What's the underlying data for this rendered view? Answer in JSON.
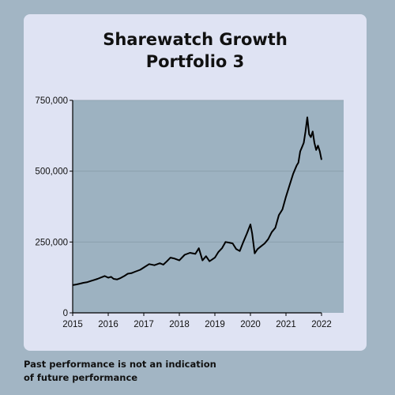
{
  "header": {
    "title": "Sharewatch Growth\nPortfolio  3"
  },
  "footer": {
    "disclaimer": "Past performance is not an indication of future performance"
  },
  "colors": {
    "background": "#a2b5c4",
    "card": "#dfe3f3",
    "plot_area": "#9db2c1",
    "line": "#000000"
  },
  "chart_data": {
    "type": "line",
    "title": "Sharewatch Growth Portfolio  3",
    "xlabel": "",
    "ylabel": "",
    "xlim": [
      2015,
      2022
    ],
    "ylim": [
      0,
      750000
    ],
    "xticks": [
      2015,
      2016,
      2017,
      2018,
      2019,
      2020,
      2021,
      2022
    ],
    "xtick_labels": [
      "2015",
      "2016",
      "2017",
      "2018",
      "2019",
      "2020",
      "2021",
      "2022"
    ],
    "yticks": [
      0,
      250000,
      500000,
      750000
    ],
    "ytick_labels": [
      "0",
      "250,000",
      "500,000",
      "750,000"
    ],
    "grid": "horizontal",
    "legend": "none",
    "series": [
      {
        "x": [
          2015.0,
          2015.1,
          2015.2,
          2015.3,
          2015.4,
          2015.5,
          2015.6,
          2015.7,
          2015.8,
          2015.9,
          2016.0,
          2016.08,
          2016.15,
          2016.25,
          2016.35,
          2016.45,
          2016.55,
          2016.65,
          2016.75,
          2016.9,
          2017.0,
          2017.15,
          2017.3,
          2017.45,
          2017.55,
          2017.65,
          2017.75,
          2017.85,
          2018.0,
          2018.15,
          2018.3,
          2018.45,
          2018.55,
          2018.65,
          2018.75,
          2018.85,
          2018.92,
          2019.0,
          2019.1,
          2019.2,
          2019.3,
          2019.4,
          2019.5,
          2019.6,
          2019.7,
          2019.8,
          2019.9,
          2020.0,
          2020.05,
          2020.12,
          2020.2,
          2020.3,
          2020.4,
          2020.5,
          2020.6,
          2020.7,
          2020.8,
          2020.9,
          2021.0,
          2021.1,
          2021.2,
          2021.3,
          2021.35,
          2021.4,
          2021.45,
          2021.5,
          2021.55,
          2021.6,
          2021.65,
          2021.7,
          2021.75,
          2021.8,
          2021.85,
          2021.9,
          2021.95,
          2022.0
        ],
        "y": [
          98000,
          100000,
          103000,
          106000,
          108000,
          112000,
          116000,
          120000,
          125000,
          130000,
          124000,
          127000,
          120000,
          118000,
          123000,
          130000,
          138000,
          140000,
          145000,
          152000,
          160000,
          172000,
          168000,
          175000,
          170000,
          182000,
          195000,
          192000,
          185000,
          205000,
          212000,
          208000,
          228000,
          185000,
          200000,
          182000,
          188000,
          195000,
          215000,
          228000,
          250000,
          248000,
          245000,
          225000,
          218000,
          250000,
          280000,
          312000,
          280000,
          210000,
          225000,
          235000,
          245000,
          260000,
          285000,
          300000,
          345000,
          365000,
          410000,
          450000,
          490000,
          520000,
          530000,
          570000,
          585000,
          600000,
          640000,
          690000,
          630000,
          620000,
          640000,
          600000,
          575000,
          590000,
          570000,
          540000
        ]
      }
    ]
  }
}
